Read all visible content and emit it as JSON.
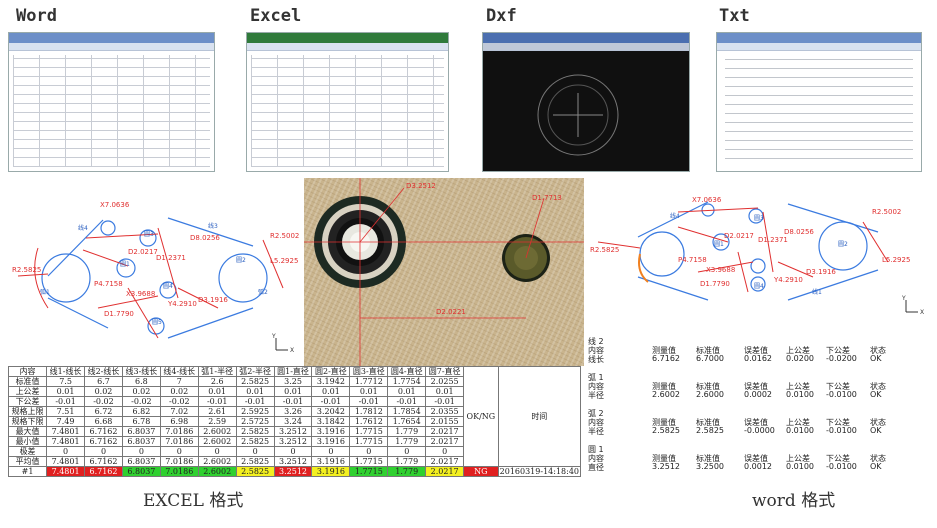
{
  "format_titles": [
    "Word",
    "Excel",
    "Dxf",
    "Txt"
  ],
  "cad_left": {
    "labels": [
      "X7.0636",
      "D2.0217",
      "D1.2371",
      "D8.0256",
      "R2.5002",
      "L5.2925",
      "R2.5825",
      "P4.7158",
      "X3.9688",
      "Y4.2910",
      "D3.1916",
      "D1.7790",
      "线4",
      "线3",
      "弧1",
      "弧2",
      "圆1",
      "圆2",
      "圆3",
      "圆4",
      "圆5",
      "Y",
      "X"
    ]
  },
  "micro": {
    "labels": [
      "D3.2512",
      "D1.7713",
      "D2.0221"
    ]
  },
  "cad_right": {
    "labels": [
      "X7.0636",
      "R2.5002",
      "R2.5825",
      "D2.0217",
      "D1.2371",
      "D8.0256",
      "X3.9688",
      "Y4.2910",
      "D3.1916",
      "D1.7790",
      "L5.2925",
      "P4.7158",
      "线4",
      "线1",
      "圆1",
      "圆2",
      "圆3",
      "圆4",
      "Y",
      "X"
    ]
  },
  "excel_table": {
    "header": [
      "内容",
      "线1-线长",
      "线2-线长",
      "线3-线长",
      "线4-线长",
      "弧1-半径",
      "弧2-半径",
      "圆1-直径",
      "圆2-直径",
      "圆3-直径",
      "圆4-直径",
      "圆7-直径"
    ],
    "ok_header": "OK/NG",
    "time_header": "时间",
    "rows": [
      [
        "标准值",
        "7.5",
        "6.7",
        "6.8",
        "7",
        "2.6",
        "2.5825",
        "3.25",
        "3.1942",
        "1.7712",
        "1.7754",
        "2.0255"
      ],
      [
        "上公差",
        "0.01",
        "0.02",
        "0.02",
        "0.02",
        "0.01",
        "0.01",
        "0.01",
        "0.01",
        "0.01",
        "0.01",
        "0.01"
      ],
      [
        "下公差",
        "-0.01",
        "-0.02",
        "-0.02",
        "-0.02",
        "-0.01",
        "-0.01",
        "-0.01",
        "-0.01",
        "-0.01",
        "-0.01",
        "-0.01"
      ],
      [
        "规格上限",
        "7.51",
        "6.72",
        "6.82",
        "7.02",
        "2.61",
        "2.5925",
        "3.26",
        "3.2042",
        "1.7812",
        "1.7854",
        "2.0355"
      ],
      [
        "规格下限",
        "7.49",
        "6.68",
        "6.78",
        "6.98",
        "2.59",
        "2.5725",
        "3.24",
        "3.1842",
        "1.7612",
        "1.7654",
        "2.0155"
      ],
      [
        "最大值",
        "7.4801",
        "6.7162",
        "6.8037",
        "7.0186",
        "2.6002",
        "2.5825",
        "3.2512",
        "3.1916",
        "1.7715",
        "1.779",
        "2.0217"
      ],
      [
        "最小值",
        "7.4801",
        "6.7162",
        "6.8037",
        "7.0186",
        "2.6002",
        "2.5825",
        "3.2512",
        "3.1916",
        "1.7715",
        "1.779",
        "2.0217"
      ],
      [
        "极差",
        "0",
        "0",
        "0",
        "0",
        "0",
        "0",
        "0",
        "0",
        "0",
        "0",
        "0"
      ],
      [
        "平均值",
        "7.4801",
        "6.7162",
        "6.8037",
        "7.0186",
        "2.6002",
        "2.5825",
        "3.2512",
        "3.1916",
        "1.7715",
        "1.779",
        "2.0217"
      ]
    ],
    "last_row": {
      "id": "#1",
      "values": [
        "7.4801",
        "6.7162",
        "6.8037",
        "7.0186",
        "2.6002",
        "2.5825",
        "3.2512",
        "3.1916",
        "1.7715",
        "1.779",
        "2.0217"
      ],
      "colors": [
        "red",
        "red",
        "green",
        "green",
        "green",
        "yellow",
        "red",
        "yellow",
        "green",
        "green",
        "yellow"
      ],
      "status": "NG",
      "time": "20160319-14:18:40"
    }
  },
  "word_results": {
    "col_headers": [
      "测量值",
      "标准值",
      "误差值",
      "上公差",
      "下公差",
      "状态"
    ],
    "items": [
      {
        "name": "线 2",
        "prop": "线长",
        "vals": [
          "6.7162",
          "6.7000",
          "0.0162",
          "0.0200",
          "-0.0200",
          "OK"
        ]
      },
      {
        "name": "弧 1",
        "prop": "半径",
        "vals": [
          "2.6002",
          "2.6000",
          "0.0002",
          "0.0100",
          "-0.0100",
          "OK"
        ]
      },
      {
        "name": "弧 2",
        "prop": "半径",
        "vals": [
          "2.5825",
          "2.5825",
          "-0.0000",
          "0.0100",
          "-0.0100",
          "OK"
        ]
      },
      {
        "name": "圆 1",
        "prop": "直径",
        "vals": [
          "3.2512",
          "3.2500",
          "0.0012",
          "0.0100",
          "-0.0100",
          "OK"
        ]
      }
    ],
    "content_label": "内容"
  },
  "captions": {
    "excel": "EXCEL 格式",
    "word": "word 格式"
  }
}
